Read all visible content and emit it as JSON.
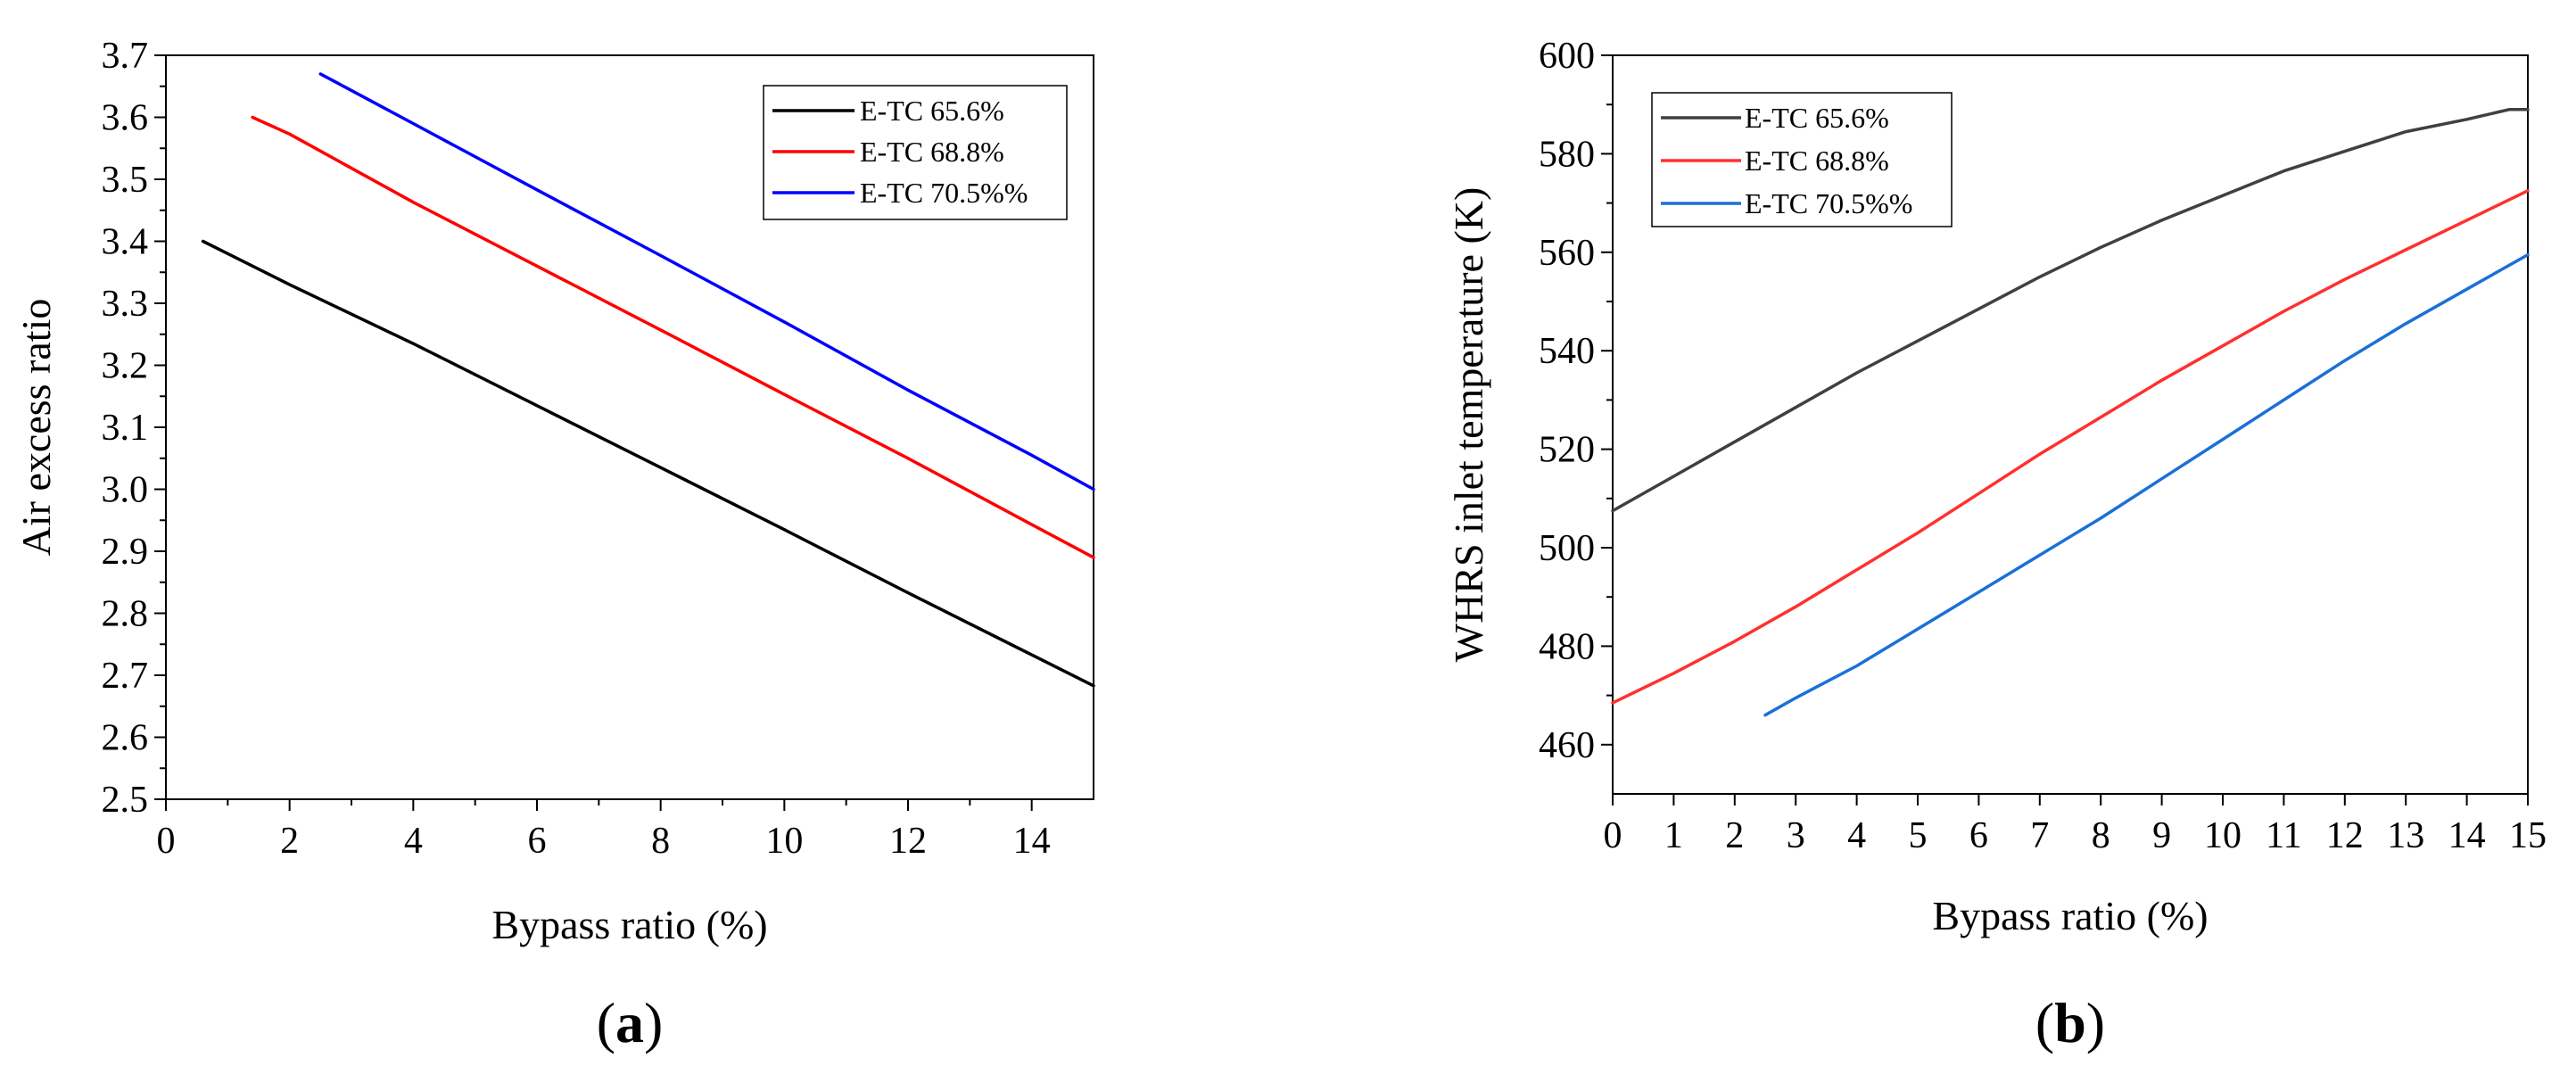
{
  "chart_data": [
    {
      "panel_label": "a",
      "type": "line",
      "title": "",
      "xlabel": "Bypass ratio (%)",
      "ylabel": "Air excess ratio",
      "xlim": [
        0,
        15
      ],
      "ylim": [
        2.5,
        3.7
      ],
      "xticks": [
        0,
        2,
        4,
        6,
        8,
        10,
        12,
        14
      ],
      "xtick_labels": [
        "0",
        "2",
        "4",
        "6",
        "8",
        "10",
        "12",
        "14"
      ],
      "yticks": [
        2.5,
        2.6,
        2.7,
        2.8,
        2.9,
        3.0,
        3.1,
        3.2,
        3.3,
        3.4,
        3.5,
        3.6,
        3.7
      ],
      "ytick_labels": [
        "2.5",
        "2.6",
        "2.7",
        "2.8",
        "2.9",
        "3.0",
        "3.1",
        "3.2",
        "3.3",
        "3.4",
        "3.5",
        "3.6",
        "3.7"
      ],
      "grid": false,
      "legend_position": "top-right",
      "series": [
        {
          "name": "E-TC 65.6%",
          "color": "#000000",
          "x": [
            0.6,
            2,
            4,
            6,
            8,
            10,
            12,
            14,
            15
          ],
          "y": [
            3.4,
            3.33,
            3.235,
            3.135,
            3.035,
            2.935,
            2.833,
            2.733,
            2.683
          ]
        },
        {
          "name": "E-TC 68.8%",
          "color": "#ff0000",
          "x": [
            1.4,
            2,
            4,
            6,
            8,
            10,
            12,
            14,
            15
          ],
          "y": [
            3.6,
            3.573,
            3.463,
            3.36,
            3.257,
            3.153,
            3.05,
            2.943,
            2.89
          ]
        },
        {
          "name": "E-TC 70.5%%",
          "color": "#0000ff",
          "x": [
            2.5,
            4,
            6,
            8,
            10,
            12,
            14,
            15
          ],
          "y": [
            3.67,
            3.59,
            3.483,
            3.377,
            3.27,
            3.16,
            3.055,
            3.0
          ]
        }
      ]
    },
    {
      "panel_label": "b",
      "type": "line",
      "title": "",
      "xlabel": "Bypass ratio (%)",
      "ylabel": "WHRS inlet temperature (K)",
      "xlim": [
        0,
        15
      ],
      "ylim": [
        450,
        600
      ],
      "xticks": [
        0,
        1,
        2,
        3,
        4,
        5,
        6,
        7,
        8,
        9,
        10,
        11,
        12,
        13,
        14,
        15
      ],
      "xtick_labels": [
        "0",
        "1",
        "2",
        "3",
        "4",
        "5",
        "6",
        "7",
        "8",
        "9",
        "10",
        "11",
        "12",
        "13",
        "14",
        "15"
      ],
      "yticks": [
        460,
        480,
        500,
        520,
        540,
        560,
        580,
        600
      ],
      "ytick_labels": [
        "460",
        "480",
        "500",
        "520",
        "540",
        "560",
        "580",
        "600"
      ],
      "grid": false,
      "legend_position": "top-left",
      "series": [
        {
          "name": "E-TC 65.6%",
          "color": "#404040",
          "x": [
            0,
            1,
            2,
            3,
            4,
            5,
            6,
            7,
            8,
            9,
            10,
            11,
            12,
            13,
            14,
            14.7,
            15
          ],
          "y": [
            507.5,
            514.5,
            521.5,
            528.5,
            535.5,
            542,
            548.5,
            555,
            561,
            566.5,
            571.5,
            576.5,
            580.5,
            584.5,
            587,
            589,
            589
          ]
        },
        {
          "name": "E-TC 68.8%",
          "color": "#ff3030",
          "x": [
            0,
            1,
            2,
            3,
            4,
            5,
            6,
            7,
            8,
            9,
            10,
            11,
            12,
            13,
            14,
            15
          ],
          "y": [
            468.5,
            474.5,
            481,
            488,
            495.5,
            503,
            511,
            519,
            526.5,
            534,
            541,
            548,
            554.5,
            560.5,
            566.5,
            572.5
          ]
        },
        {
          "name": "E-TC 70.5%%",
          "color": "#1a70d8",
          "x": [
            2.5,
            3,
            4,
            5,
            6,
            7,
            8,
            9,
            10,
            11,
            12,
            13,
            14,
            15
          ],
          "y": [
            466,
            469.5,
            476,
            483.5,
            491,
            498.5,
            506,
            514,
            522,
            530,
            538,
            545.5,
            552.5,
            559.5
          ]
        }
      ]
    }
  ]
}
